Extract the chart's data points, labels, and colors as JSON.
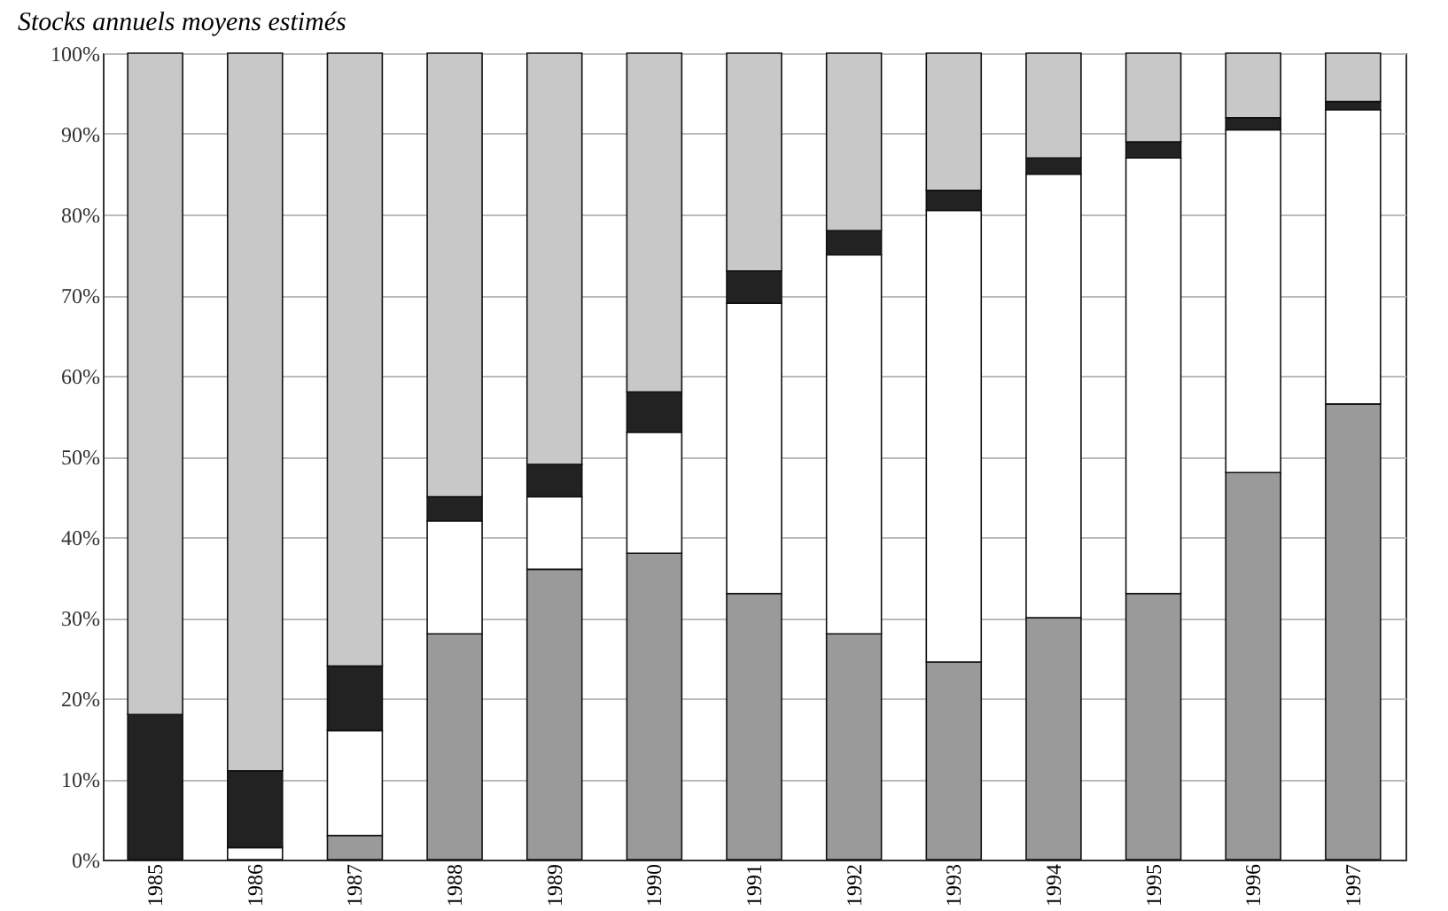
{
  "chart_data": {
    "type": "bar",
    "title": "Stocks annuels moyens estimés",
    "stacked": true,
    "grid": "y",
    "legend": false,
    "categories": [
      "1985",
      "1986",
      "1987",
      "1988",
      "1989",
      "1990",
      "1991",
      "1992",
      "1993",
      "1994",
      "1995",
      "1996",
      "1997"
    ],
    "series": [
      {
        "color": "#9a9a9a",
        "values": [
          0,
          0,
          3,
          28,
          36,
          38,
          33,
          28,
          24.5,
          30,
          33,
          48,
          56.5
        ]
      },
      {
        "color": "#ffffff",
        "values": [
          0,
          1.5,
          13,
          14,
          9,
          15,
          36,
          47,
          56,
          55,
          54,
          42.5,
          36.5
        ]
      },
      {
        "color": "#222222",
        "values": [
          18,
          9.5,
          8,
          3,
          4,
          5,
          4,
          3,
          2.5,
          2,
          2,
          1.5,
          1
        ]
      },
      {
        "color": "#c8c8c8",
        "values": [
          82,
          89,
          76,
          55,
          51,
          42,
          27,
          22,
          17,
          13,
          11,
          8,
          6
        ]
      }
    ],
    "ylim": [
      0,
      100
    ],
    "yticks": [
      {
        "value": 0,
        "label": "0%"
      },
      {
        "value": 10,
        "label": "10%"
      },
      {
        "value": 20,
        "label": "20%"
      },
      {
        "value": 30,
        "label": "30%"
      },
      {
        "value": 40,
        "label": "40%"
      },
      {
        "value": 50,
        "label": "50%"
      },
      {
        "value": 60,
        "label": "60%"
      },
      {
        "value": 70,
        "label": "70%"
      },
      {
        "value": 80,
        "label": "80%"
      },
      {
        "value": 90,
        "label": "90%"
      },
      {
        "value": 100,
        "label": "100%"
      }
    ]
  }
}
